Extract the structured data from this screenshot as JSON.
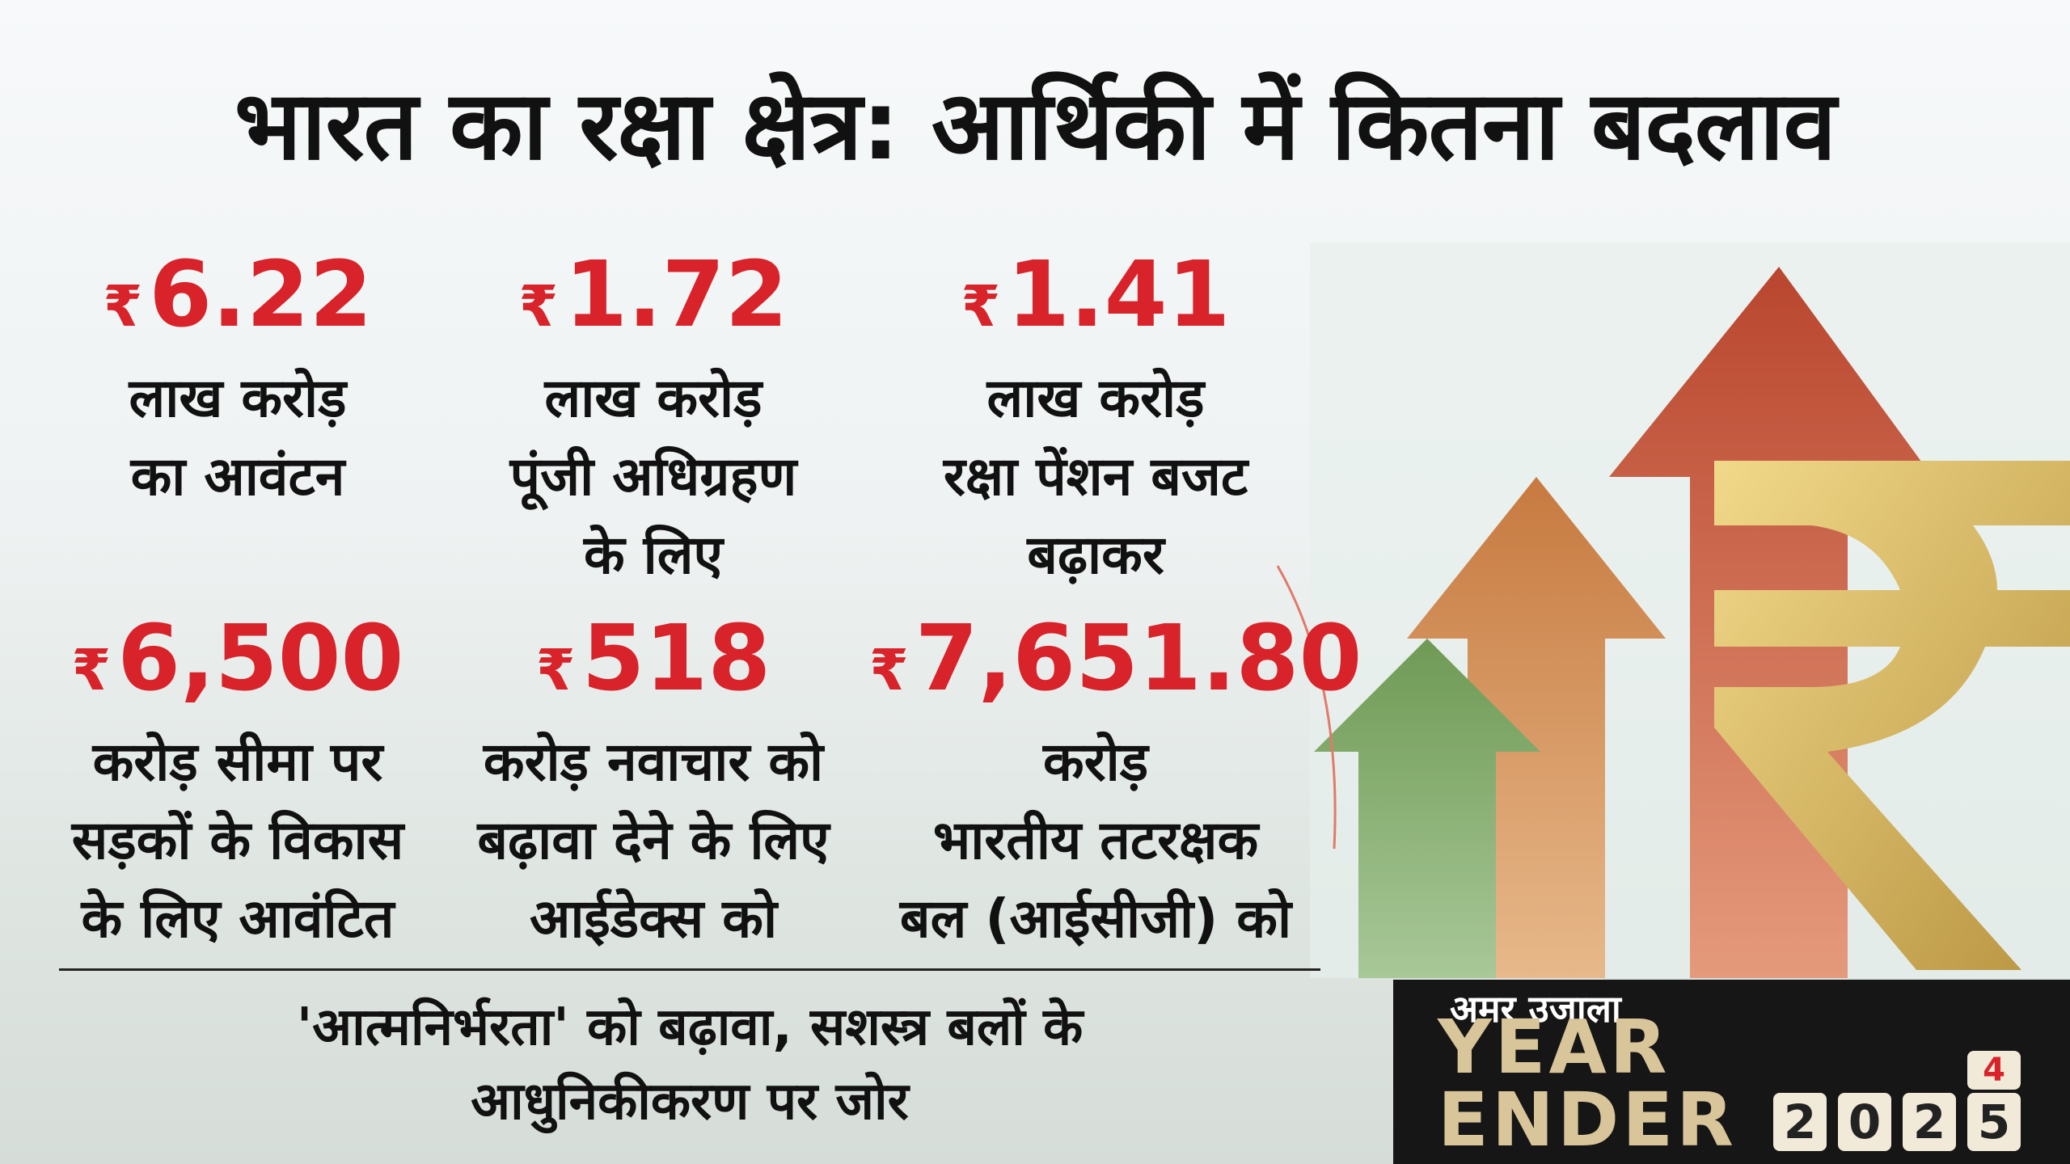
{
  "title": "भारत का रक्षा क्षेत्र: आर्थिकी में कितना बदलाव",
  "stats": [
    {
      "currency": "₹",
      "value": "6.22",
      "lines": [
        "लाख करोड़",
        "का आवंटन"
      ]
    },
    {
      "currency": "₹",
      "value": "1.72",
      "lines": [
        "लाख करोड़",
        "पूंजी अधिग्रहण",
        "के लिए"
      ]
    },
    {
      "currency": "₹",
      "value": "1.41",
      "lines": [
        "लाख करोड़",
        "रक्षा पेंशन बजट",
        "बढ़ाकर"
      ]
    },
    {
      "currency": "₹",
      "value": "6,500",
      "lines": [
        "करोड़ सीमा पर",
        "सड़कों के विकास",
        "के लिए आवंटित"
      ]
    },
    {
      "currency": "₹",
      "value": "518",
      "lines": [
        "करोड़ नवाचार को",
        "बढ़ावा देने के लिए",
        "आईडेक्स को"
      ]
    },
    {
      "currency": "₹",
      "value": "7,651.80",
      "lines": [
        "करोड़",
        "भारतीय तटरक्षक",
        "बल (आईसीजी) को"
      ]
    }
  ],
  "footer": [
    "'आत्मनिर्भरता' को बढ़ावा, सशस्त्र बलों के",
    "आधुनिकीकरण पर जोर"
  ],
  "badge": {
    "brand": "अमर उजाला",
    "line1": "YEAR",
    "line2": "ENDER",
    "year_digits": [
      "2",
      "0",
      "2",
      "5"
    ],
    "next_digit": "4"
  }
}
